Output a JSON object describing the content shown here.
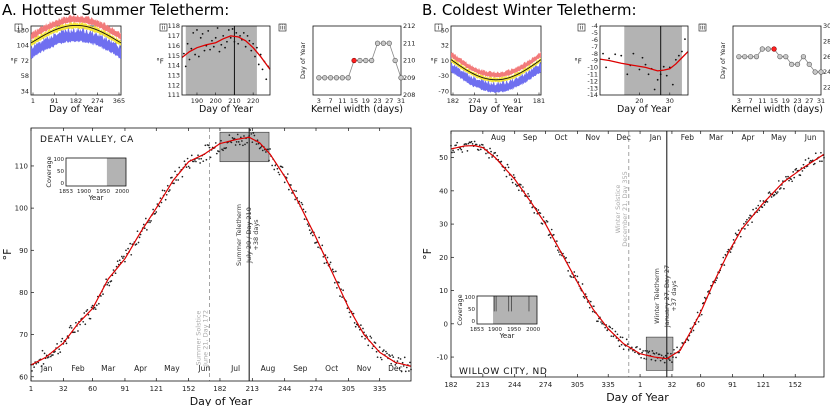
{
  "panels": {
    "a_title": "A. Hottest Summer Teletherm:",
    "b_title": "B. Coldest Winter Teletherm:"
  },
  "colors": {
    "red": "#ff2020",
    "series": "#dd0000",
    "band_red": "#f27a7a",
    "band_yellow": "#f5e63a",
    "band_blue": "#6f6ff0",
    "window": "#b3b3b3",
    "dashed": "#9a9a9a"
  },
  "chart_data": [
    {
      "id": "a_small_i",
      "type": "area",
      "roman": "i",
      "xlabel": "Day of Year",
      "ylabel": "°F",
      "x_ticks": [
        "1",
        "91",
        "182",
        "274",
        "365"
      ],
      "y_ticks": [
        "130",
        "104",
        "72",
        "58",
        "34"
      ],
      "xlim": [
        1,
        365
      ],
      "ylim": [
        30,
        132
      ],
      "center_mean": 112,
      "amplitude": 26
    },
    {
      "id": "a_small_ii",
      "type": "scatter",
      "roman": "ii",
      "xlabel": "Day of Year",
      "ylabel": "°F",
      "x_ticks": [
        "190",
        "200",
        "210",
        "220"
      ],
      "y_ticks": [
        "118",
        "117",
        "116",
        "115",
        "114",
        "113",
        "112",
        "111"
      ],
      "xlim": [
        182,
        229
      ],
      "ylim": [
        111,
        118
      ],
      "window": [
        184,
        222
      ],
      "teletherm_day": 210,
      "curve": [
        [
          182,
          114.8
        ],
        [
          186,
          115.4
        ],
        [
          190,
          115.8
        ],
        [
          195,
          116.1
        ],
        [
          200,
          116.3
        ],
        [
          204,
          116.7
        ],
        [
          208,
          117.0
        ],
        [
          212,
          116.9
        ],
        [
          216,
          116.5
        ],
        [
          220,
          115.8
        ],
        [
          224,
          114.9
        ],
        [
          229,
          113.6
        ]
      ],
      "points": [
        [
          183,
          115.2
        ],
        [
          184,
          113.9
        ],
        [
          185,
          116.2
        ],
        [
          186,
          114.6
        ],
        [
          187,
          115.7
        ],
        [
          188,
          117.3
        ],
        [
          189,
          115.1
        ],
        [
          190,
          117.6
        ],
        [
          191,
          114.9
        ],
        [
          192,
          116.8
        ],
        [
          193,
          117.2
        ],
        [
          194,
          115.5
        ],
        [
          195,
          116.0
        ],
        [
          196,
          117.5
        ],
        [
          197,
          115.6
        ],
        [
          198,
          116.5
        ],
        [
          199,
          115.9
        ],
        [
          200,
          116.8
        ],
        [
          201,
          117.8
        ],
        [
          202,
          115.4
        ],
        [
          203,
          116.1
        ],
        [
          204,
          117.0
        ],
        [
          205,
          115.8
        ],
        [
          206,
          116.4
        ],
        [
          207,
          117.6
        ],
        [
          208,
          116.8
        ],
        [
          209,
          117.7
        ],
        [
          210,
          116.4
        ],
        [
          211,
          117.3
        ],
        [
          212,
          116.2
        ],
        [
          213,
          117.0
        ],
        [
          214,
          116.6
        ],
        [
          215,
          117.3
        ],
        [
          216,
          115.9
        ],
        [
          217,
          117.0
        ],
        [
          218,
          116.5
        ],
        [
          219,
          115.5
        ],
        [
          220,
          116.2
        ],
        [
          221,
          114.9
        ],
        [
          222,
          115.8
        ],
        [
          223,
          114.1
        ],
        [
          224,
          115.1
        ],
        [
          225,
          113.6
        ],
        [
          226,
          114.4
        ],
        [
          227,
          112.6
        ],
        [
          228,
          113.9
        ]
      ]
    },
    {
      "id": "a_small_iii",
      "type": "line",
      "roman": "iii",
      "xlabel": "Kernel width (days)",
      "ylabel": "Day of Year",
      "x_ticks": [
        "3",
        "7",
        "11",
        "15",
        "19",
        "23",
        "27",
        "31"
      ],
      "y_ticks": [
        "212",
        "211",
        "210",
        "209",
        "208"
      ],
      "xlim": [
        1,
        31
      ],
      "ylim": [
        208,
        212
      ],
      "x": [
        3,
        5,
        7,
        9,
        11,
        13,
        15,
        17,
        19,
        21,
        23,
        25,
        27,
        29,
        31
      ],
      "y": [
        209,
        209,
        209,
        209,
        209,
        209,
        210,
        210,
        210,
        210,
        211,
        211,
        211,
        210,
        209
      ],
      "highlight_x": 15
    },
    {
      "id": "a_main",
      "type": "scatter",
      "location": "DEATH VALLEY, CA",
      "xlabel": "Day of Year",
      "ylabel": "°F",
      "x_ticks": [
        "1",
        "32",
        "60",
        "91",
        "121",
        "152",
        "182",
        "213",
        "244",
        "274",
        "305",
        "335"
      ],
      "y_ticks": [
        "60",
        "70",
        "80",
        "90",
        "100",
        "110"
      ],
      "months": [
        "Jan",
        "Feb",
        "Mar",
        "Apr",
        "May",
        "Jun",
        "Jul",
        "Aug",
        "Sep",
        "Oct",
        "Nov",
        "Dec"
      ],
      "xlim": [
        1,
        365
      ],
      "ylim": [
        59,
        119
      ],
      "solstice_day": 172,
      "solstice_label": "Summer Solstice",
      "solstice_date": "June 21, Day 172",
      "teletherm_day": 210,
      "teletherm_label": "Summer Teletherm",
      "teletherm_date": "July 29 / Day 210",
      "teletherm_extent": "+38 days",
      "inset_box": [
        182,
        229,
        111,
        118
      ],
      "curve": [
        [
          1,
          62.8
        ],
        [
          15,
          64.6
        ],
        [
          32,
          68.0
        ],
        [
          46,
          72.6
        ],
        [
          60,
          76.2
        ],
        [
          75,
          83.2
        ],
        [
          91,
          88.0
        ],
        [
          106,
          94.3
        ],
        [
          121,
          100.0
        ],
        [
          137,
          106.5
        ],
        [
          152,
          111.0
        ],
        [
          167,
          112.8
        ],
        [
          182,
          115.3
        ],
        [
          198,
          116.3
        ],
        [
          210,
          116.8
        ],
        [
          220,
          115.5
        ],
        [
          230,
          112.8
        ],
        [
          244,
          107.5
        ],
        [
          258,
          101.0
        ],
        [
          274,
          93.0
        ],
        [
          290,
          84.5
        ],
        [
          305,
          76.5
        ],
        [
          320,
          70.0
        ],
        [
          335,
          65.8
        ],
        [
          350,
          63.4
        ],
        [
          365,
          62.5
        ]
      ],
      "noise_seed": 7,
      "inset": {
        "ylabel": "Coverage",
        "xlabel": "Year",
        "y_ticks": [
          "100",
          "50",
          "0"
        ],
        "x_ticks": [
          "1853",
          "1900",
          "1950",
          "2000"
        ],
        "coverage_start": 1960,
        "coverage_end": 2010,
        "year_range": [
          1853,
          2010
        ]
      }
    },
    {
      "id": "b_small_i",
      "type": "area",
      "roman": "i",
      "xlabel": "Day of Year",
      "ylabel": "°F",
      "x_ticks": [
        "182",
        "274",
        "1",
        "91",
        "181"
      ],
      "y_ticks": [
        "50",
        "32",
        "10",
        "-30",
        "-70"
      ],
      "xlim": [
        182,
        546
      ],
      "ylim": [
        -70,
        60
      ],
      "center_mean": 6,
      "amplitude": -38
    },
    {
      "id": "b_small_ii",
      "type": "scatter",
      "roman": "ii",
      "xlabel": "Day of Year",
      "ylabel": "°F",
      "x_ticks": [
        "20",
        "30"
      ],
      "y_ticks": [
        "-4",
        "-5",
        "-6",
        "-7",
        "-8",
        "-9",
        "-10",
        "-11",
        "-12",
        "-13",
        "-14"
      ],
      "xlim": [
        7,
        36
      ],
      "ylim": [
        -14,
        -4
      ],
      "window": [
        15,
        34
      ],
      "teletherm_day": 27,
      "curve": [
        [
          7,
          -8.8
        ],
        [
          10,
          -9.0
        ],
        [
          14,
          -9.4
        ],
        [
          18,
          -9.7
        ],
        [
          22,
          -10.0
        ],
        [
          26,
          -10.5
        ],
        [
          28,
          -10.4
        ],
        [
          30,
          -10.2
        ],
        [
          32,
          -9.5
        ],
        [
          34,
          -8.6
        ],
        [
          36,
          -7.7
        ]
      ],
      "points": [
        [
          8,
          -8.0
        ],
        [
          9,
          -10.0
        ],
        [
          10,
          -8.7
        ],
        [
          12,
          -8.1
        ],
        [
          14,
          -8.3
        ],
        [
          16,
          -11.0
        ],
        [
          17,
          -9.7
        ],
        [
          18,
          -8.0
        ],
        [
          20,
          -10.3
        ],
        [
          21,
          -8.6
        ],
        [
          22,
          -9.6
        ],
        [
          23,
          -11.0
        ],
        [
          24,
          -10.2
        ],
        [
          25,
          -13.2
        ],
        [
          26,
          -11.8
        ],
        [
          27,
          -11.0
        ],
        [
          28,
          -9.9
        ],
        [
          29,
          -11.2
        ],
        [
          30,
          -10.0
        ],
        [
          31,
          -12.5
        ],
        [
          32,
          -8.9
        ],
        [
          33,
          -8.3
        ],
        [
          34,
          -7.7
        ],
        [
          35,
          -5.9
        ]
      ]
    },
    {
      "id": "b_small_iii",
      "type": "line",
      "roman": "iii",
      "xlabel": "Kernel width (days)",
      "ylabel": "Day of Year",
      "x_ticks": [
        "3",
        "7",
        "11",
        "15",
        "19",
        "23",
        "27",
        "31"
      ],
      "y_ticks": [
        "30",
        "28",
        "26",
        "24",
        "22"
      ],
      "xlim": [
        1,
        31
      ],
      "ylim": [
        21,
        30
      ],
      "x": [
        3,
        5,
        7,
        9,
        11,
        13,
        15,
        17,
        19,
        21,
        23,
        25,
        27,
        29,
        31
      ],
      "y": [
        26,
        26,
        26,
        26,
        27,
        27,
        27,
        26,
        26,
        25,
        25,
        26,
        25,
        24,
        24
      ],
      "highlight_x": 15
    },
    {
      "id": "b_main",
      "type": "scatter",
      "location": "WILLOW CITY, ND",
      "xlabel": "Day of Year",
      "ylabel": "°F",
      "x_ticks": [
        "182",
        "213",
        "244",
        "274",
        "305",
        "335",
        "1",
        "32",
        "60",
        "91",
        "121",
        "152"
      ],
      "y_ticks": [
        "-10",
        "0",
        "10",
        "20",
        "30",
        "40",
        "50"
      ],
      "months": [
        "Aug",
        "Sep",
        "Oct",
        "Nov",
        "Dec",
        "Jan",
        "Feb",
        "Mar",
        "Apr",
        "May",
        "Jun"
      ],
      "xlim": [
        182,
        545
      ],
      "ylim": [
        -16,
        58
      ],
      "solstice_day": 355,
      "solstice_label": "Winter Solstice",
      "solstice_date": "December 21, Day 355",
      "teletherm_day": 392,
      "teletherm_label": "Winter Teletherm",
      "teletherm_date": "January 27, Day 27",
      "teletherm_extent": "+37 days",
      "inset_box": [
        372,
        398,
        -14,
        -4
      ],
      "curve": [
        [
          182,
          52.6
        ],
        [
          195,
          53.5
        ],
        [
          205,
          53.6
        ],
        [
          213,
          53.0
        ],
        [
          225,
          50.0
        ],
        [
          244,
          43.5
        ],
        [
          260,
          36.5
        ],
        [
          274,
          30.0
        ],
        [
          290,
          21.0
        ],
        [
          305,
          12.5
        ],
        [
          320,
          4.5
        ],
        [
          335,
          -1.5
        ],
        [
          350,
          -6.0
        ],
        [
          366,
          -9.0
        ],
        [
          380,
          -10.0
        ],
        [
          392,
          -10.5
        ],
        [
          405,
          -8.0
        ],
        [
          415,
          -2.5
        ],
        [
          425,
          3.5
        ],
        [
          437,
          12.0
        ],
        [
          452,
          21.5
        ],
        [
          465,
          28.5
        ],
        [
          485,
          36.0
        ],
        [
          505,
          42.5
        ],
        [
          525,
          47.0
        ],
        [
          545,
          51.0
        ]
      ],
      "noise_seed": 11,
      "inset": {
        "ylabel": "Coverage",
        "xlabel": "Year",
        "y_ticks": [
          "100",
          "50",
          "0"
        ],
        "x_ticks": [
          "1853",
          "1900",
          "1950",
          "2000"
        ],
        "coverage_start": 1895,
        "coverage_end": 2010,
        "year_range": [
          1853,
          2010
        ]
      }
    }
  ]
}
